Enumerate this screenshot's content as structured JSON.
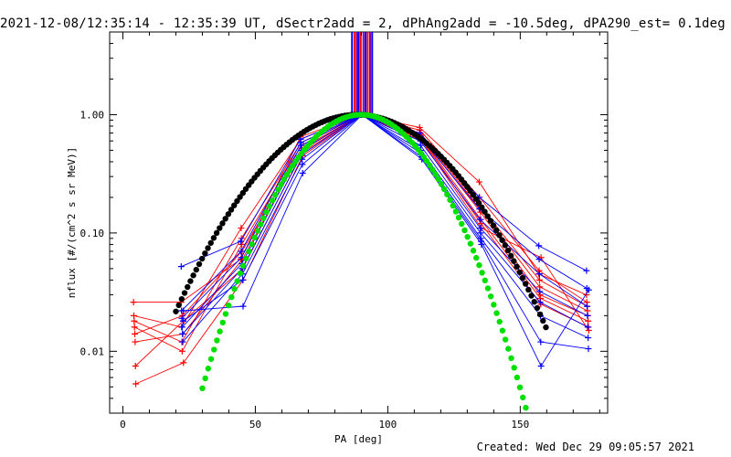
{
  "title": "2021-12-08/12:35:14 - 12:35:39 UT, dSectr2add = 2, dPhAng2add = -10.5deg, dPA290_est=  0.1deg",
  "footer": "Created: Wed Dec 29 09:05:57 2021",
  "colors": {
    "red": "#ff0000",
    "blue": "#0000ff",
    "black": "#000000",
    "green": "#00e000",
    "purple": "#8000a0"
  },
  "chart_data": {
    "type": "line",
    "xlabel": "PA [deg]",
    "ylabel": "nflux [#/(cm^2 s sr MeV)]",
    "xlim": [
      -5,
      183
    ],
    "ylim": [
      0.003,
      5.0
    ],
    "yscale": "log",
    "xticks": [
      0,
      50,
      100,
      150
    ],
    "xtick_labels": [
      "0",
      "50",
      "100",
      "150"
    ],
    "yticks": [
      0.01,
      0.1,
      1.0
    ],
    "ytick_labels": [
      "0.01",
      "0.10",
      "1.00"
    ],
    "x_grid": [
      4.5,
      22.5,
      45,
      67.5,
      90,
      112.5,
      135,
      157.5,
      175.5
    ],
    "red_series": [
      [
        0.026,
        0.026,
        0.06,
        0.65,
        1.0,
        0.78,
        0.27,
        0.045,
        0.03
      ],
      [
        0.02,
        0.016,
        0.11,
        0.62,
        1.0,
        0.74,
        0.2,
        0.048,
        0.026
      ],
      [
        0.018,
        0.012,
        0.09,
        0.58,
        1.0,
        0.7,
        0.17,
        0.04,
        0.024
      ],
      [
        0.016,
        0.01,
        0.08,
        0.55,
        1.0,
        0.68,
        0.16,
        0.035,
        0.022
      ],
      [
        0.014,
        0.02,
        0.07,
        0.52,
        1.0,
        0.66,
        0.15,
        0.03,
        0.02
      ],
      [
        0.012,
        0.014,
        0.06,
        0.5,
        1.0,
        0.64,
        0.13,
        0.028,
        0.018
      ],
      [
        0.0075,
        0.018,
        0.05,
        0.48,
        1.0,
        0.62,
        0.12,
        0.025,
        0.016
      ],
      [
        0.0053,
        0.008,
        0.04,
        0.45,
        1.0,
        0.6,
        0.11,
        0.062,
        0.015
      ]
    ],
    "blue_series": [
      [
        null,
        0.052,
        0.085,
        0.62,
        1.0,
        0.7,
        0.2,
        0.078,
        0.048
      ],
      [
        null,
        0.022,
        0.07,
        0.58,
        1.0,
        0.65,
        0.16,
        0.06,
        0.034
      ],
      [
        null,
        0.019,
        0.062,
        0.55,
        1.0,
        0.6,
        0.13,
        0.045,
        0.024
      ],
      [
        null,
        0.016,
        0.055,
        0.5,
        1.0,
        0.55,
        0.11,
        0.032,
        0.02
      ],
      [
        null,
        0.014,
        0.05,
        0.46,
        1.0,
        0.5,
        0.1,
        0.026,
        0.016
      ],
      [
        null,
        0.012,
        0.045,
        0.42,
        1.0,
        0.47,
        0.09,
        0.02,
        0.013
      ],
      [
        null,
        0.018,
        0.04,
        0.38,
        1.0,
        0.44,
        0.085,
        0.012,
        0.0105
      ],
      [
        null,
        0.022,
        0.024,
        0.32,
        1.0,
        0.42,
        0.08,
        0.0075,
        0.033
      ]
    ],
    "black_fit": {
      "x_range": [
        20,
        160
      ],
      "center": 88.5,
      "width_deg": 35
    },
    "green_fit": {
      "x_range": [
        30,
        158
      ],
      "center": 90,
      "width_deg": 26
    },
    "vertical_lines": [
      {
        "x": 86.5,
        "color": "blue"
      },
      {
        "x": 87.5,
        "color": "red"
      },
      {
        "x": 88.3,
        "color": "purple"
      },
      {
        "x": 89.0,
        "color": "blue"
      },
      {
        "x": 89.8,
        "color": "red"
      },
      {
        "x": 90.8,
        "color": "purple"
      },
      {
        "x": 91.6,
        "color": "blue"
      },
      {
        "x": 92.4,
        "color": "red"
      },
      {
        "x": 93.3,
        "color": "purple"
      },
      {
        "x": 94.1,
        "color": "blue"
      }
    ]
  }
}
